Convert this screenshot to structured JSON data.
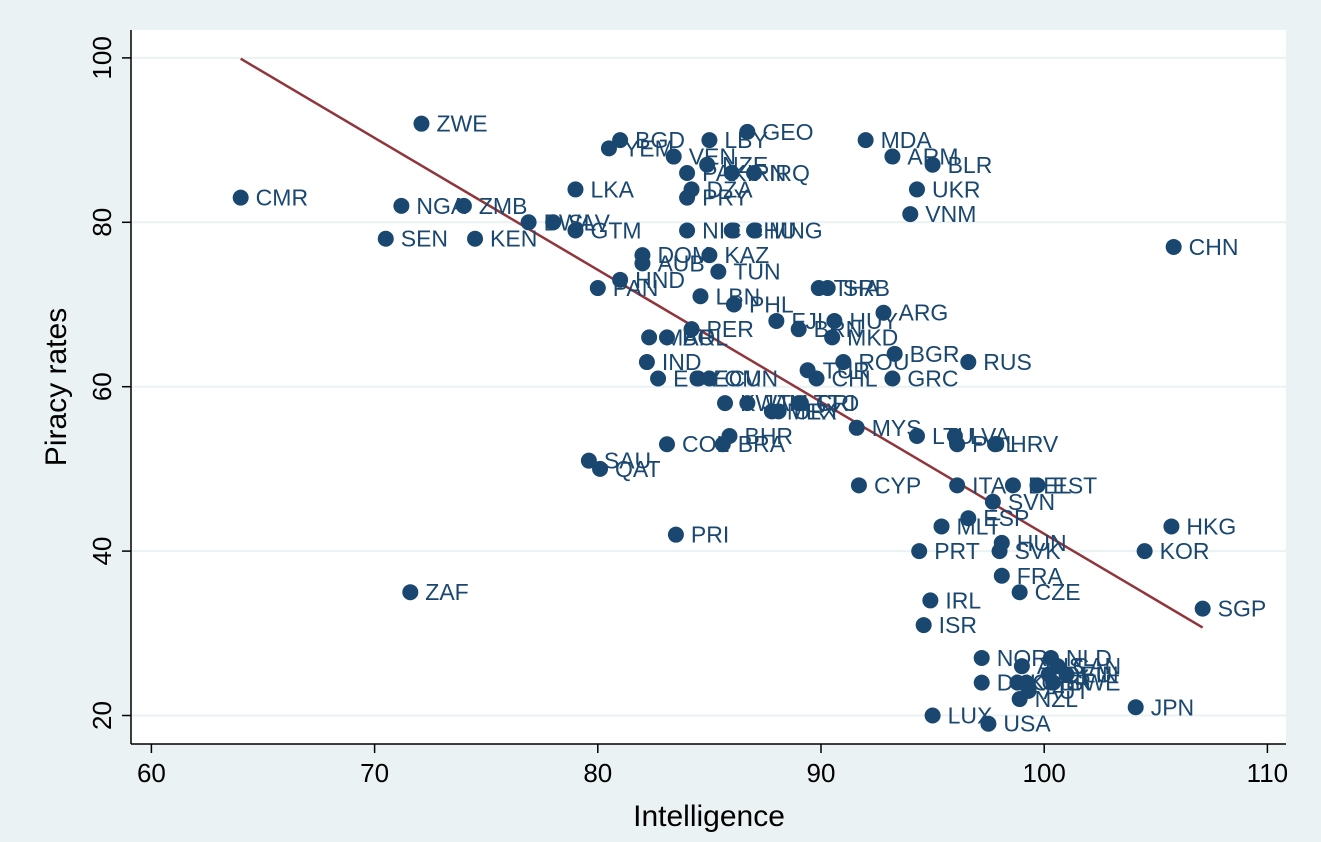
{
  "chart_data": {
    "type": "scatter",
    "xlabel": "Intelligence",
    "ylabel": "Piracy rates",
    "xlim": [
      59,
      110
    ],
    "ylim": [
      17,
      102
    ],
    "xticks": [
      "60",
      "70",
      "80",
      "90",
      "100",
      "110"
    ],
    "yticks": [
      "20",
      "40",
      "60",
      "80",
      "100"
    ],
    "grid": "horizontal",
    "colors": {
      "background": "#eaf2f3",
      "plot_area": "#ffffff",
      "marker": "#1a476f",
      "fit_line": "#90353b"
    },
    "fit_line": {
      "type": "linear",
      "x": [
        64,
        107.1
      ],
      "y": [
        99.9,
        30.7
      ]
    },
    "points": [
      {
        "label": "CMR",
        "x": 64.0,
        "y": 83
      },
      {
        "label": "ZWE",
        "x": 72.1,
        "y": 92
      },
      {
        "label": "NGA",
        "x": 71.2,
        "y": 82
      },
      {
        "label": "ZMB",
        "x": 74.0,
        "y": 82
      },
      {
        "label": "SEN",
        "x": 70.5,
        "y": 78
      },
      {
        "label": "KEN",
        "x": 74.5,
        "y": 78
      },
      {
        "label": "ZAF",
        "x": 71.6,
        "y": 35
      },
      {
        "label": "BWA",
        "x": 76.9,
        "y": 80
      },
      {
        "label": "SLV",
        "x": 78.0,
        "y": 80
      },
      {
        "label": "GTM",
        "x": 79.0,
        "y": 79
      },
      {
        "label": "LKA",
        "x": 79.0,
        "y": 84
      },
      {
        "label": "YEM",
        "x": 80.5,
        "y": 89
      },
      {
        "label": "BGD",
        "x": 81.0,
        "y": 90
      },
      {
        "label": "PAN",
        "x": 80.0,
        "y": 72
      },
      {
        "label": "HND",
        "x": 81.0,
        "y": 73
      },
      {
        "label": "DOM",
        "x": 82.0,
        "y": 76
      },
      {
        "label": "AUB",
        "x": 82.0,
        "y": 75
      },
      {
        "label": "MAR",
        "x": 82.3,
        "y": 66
      },
      {
        "label": "BOL",
        "x": 83.1,
        "y": 66
      },
      {
        "label": "IND",
        "x": 82.2,
        "y": 63
      },
      {
        "label": "EGY",
        "x": 82.7,
        "y": 61
      },
      {
        "label": "COL",
        "x": 83.1,
        "y": 53
      },
      {
        "label": "SAU",
        "x": 79.6,
        "y": 51
      },
      {
        "label": "QAT",
        "x": 80.1,
        "y": 50
      },
      {
        "label": "PRI",
        "x": 83.5,
        "y": 42
      },
      {
        "label": "VEN",
        "x": 83.4,
        "y": 88
      },
      {
        "label": "PAK",
        "x": 84.0,
        "y": 86
      },
      {
        "label": "DZA",
        "x": 84.2,
        "y": 84
      },
      {
        "label": "PRY",
        "x": 84.0,
        "y": 83
      },
      {
        "label": "NIC",
        "x": 84.0,
        "y": 79
      },
      {
        "label": "PER",
        "x": 84.2,
        "y": 67
      },
      {
        "label": "ECU",
        "x": 84.5,
        "y": 61
      },
      {
        "label": "LBN",
        "x": 84.6,
        "y": 71
      },
      {
        "label": "LBY",
        "x": 85.0,
        "y": 90
      },
      {
        "label": "NZE",
        "x": 84.9,
        "y": 87
      },
      {
        "label": "KAZ",
        "x": 85.0,
        "y": 76
      },
      {
        "label": "TUN",
        "x": 85.4,
        "y": 74
      },
      {
        "label": "OMN",
        "x": 85.0,
        "y": 61
      },
      {
        "label": "KWT",
        "x": 85.7,
        "y": 58
      },
      {
        "label": "BHR",
        "x": 85.9,
        "y": 54
      },
      {
        "label": "BRA",
        "x": 85.6,
        "y": 53
      },
      {
        "label": "PHL",
        "x": 86.1,
        "y": 70
      },
      {
        "label": "IRN",
        "x": 86.0,
        "y": 86
      },
      {
        "label": "IRQ",
        "x": 87.0,
        "y": 86
      },
      {
        "label": "CHU",
        "x": 86.0,
        "y": 79
      },
      {
        "label": "MNG",
        "x": 87.0,
        "y": 79
      },
      {
        "label": "GEO",
        "x": 86.7,
        "y": 91
      },
      {
        "label": "JAM",
        "x": 86.7,
        "y": 58
      },
      {
        "label": "MEX",
        "x": 87.8,
        "y": 57
      },
      {
        "label": "URY",
        "x": 88.1,
        "y": 57
      },
      {
        "label": "TTO",
        "x": 89.0,
        "y": 58
      },
      {
        "label": "CRI",
        "x": 89.1,
        "y": 58
      },
      {
        "label": "FJI",
        "x": 88.0,
        "y": 68
      },
      {
        "label": "BRN",
        "x": 89.0,
        "y": 67
      },
      {
        "label": "TUR",
        "x": 89.4,
        "y": 62
      },
      {
        "label": "CHL",
        "x": 89.8,
        "y": 61
      },
      {
        "label": "THA",
        "x": 89.9,
        "y": 72
      },
      {
        "label": "SRB",
        "x": 90.3,
        "y": 72
      },
      {
        "label": "HUY",
        "x": 90.6,
        "y": 68
      },
      {
        "label": "MKD",
        "x": 90.5,
        "y": 66
      },
      {
        "label": "ROU",
        "x": 91.0,
        "y": 63
      },
      {
        "label": "MYS",
        "x": 91.6,
        "y": 55
      },
      {
        "label": "CYP",
        "x": 91.7,
        "y": 48
      },
      {
        "label": "MDA",
        "x": 92.0,
        "y": 90
      },
      {
        "label": "ARG",
        "x": 92.8,
        "y": 69
      },
      {
        "label": "BGR",
        "x": 93.3,
        "y": 64
      },
      {
        "label": "GRC",
        "x": 93.2,
        "y": 61
      },
      {
        "label": "ARM",
        "x": 93.2,
        "y": 88
      },
      {
        "label": "UKR",
        "x": 94.3,
        "y": 84
      },
      {
        "label": "VNM",
        "x": 94.0,
        "y": 81
      },
      {
        "label": "BLR",
        "x": 95.0,
        "y": 87
      },
      {
        "label": "RUS",
        "x": 96.6,
        "y": 63
      },
      {
        "label": "LTU",
        "x": 94.3,
        "y": 54
      },
      {
        "label": "LVA",
        "x": 96.0,
        "y": 54
      },
      {
        "label": "POL",
        "x": 96.1,
        "y": 53
      },
      {
        "label": "HRV",
        "x": 97.8,
        "y": 53
      },
      {
        "label": "ITA",
        "x": 96.1,
        "y": 48
      },
      {
        "label": "SVN",
        "x": 97.7,
        "y": 46
      },
      {
        "label": "ESP",
        "x": 96.6,
        "y": 44
      },
      {
        "label": "MLT",
        "x": 95.4,
        "y": 43
      },
      {
        "label": "PRT",
        "x": 94.4,
        "y": 40
      },
      {
        "label": "SVK",
        "x": 98.0,
        "y": 40
      },
      {
        "label": "HUN",
        "x": 98.1,
        "y": 41
      },
      {
        "label": "FRA",
        "x": 98.1,
        "y": 37
      },
      {
        "label": "CZE",
        "x": 98.9,
        "y": 35
      },
      {
        "label": "BEL",
        "x": 98.6,
        "y": 48
      },
      {
        "label": "EST",
        "x": 99.7,
        "y": 48
      },
      {
        "label": "IRL",
        "x": 94.9,
        "y": 34
      },
      {
        "label": "ISR",
        "x": 94.6,
        "y": 31
      },
      {
        "label": "LUX",
        "x": 95.0,
        "y": 20
      },
      {
        "label": "USA",
        "x": 97.5,
        "y": 19
      },
      {
        "label": "NOR",
        "x": 97.2,
        "y": 27
      },
      {
        "label": "DNK",
        "x": 97.2,
        "y": 24
      },
      {
        "label": "AUS",
        "x": 99.0,
        "y": 26
      },
      {
        "label": "NLD",
        "x": 100.3,
        "y": 27
      },
      {
        "label": "CAN",
        "x": 100.6,
        "y": 26
      },
      {
        "label": "DEU",
        "x": 100.2,
        "y": 25
      },
      {
        "label": "FIN",
        "x": 101.0,
        "y": 25
      },
      {
        "label": "SWE",
        "x": 100.4,
        "y": 24
      },
      {
        "label": "GBR",
        "x": 99.2,
        "y": 24
      },
      {
        "label": "CHE",
        "x": 98.8,
        "y": 24
      },
      {
        "label": "AUT",
        "x": 99.3,
        "y": 23
      },
      {
        "label": "NZL",
        "x": 98.9,
        "y": 22
      },
      {
        "label": "JPN",
        "x": 104.1,
        "y": 21
      },
      {
        "label": "KOR",
        "x": 104.5,
        "y": 40
      },
      {
        "label": "HKG",
        "x": 105.7,
        "y": 43
      },
      {
        "label": "SGP",
        "x": 107.1,
        "y": 33
      },
      {
        "label": "CHN",
        "x": 105.8,
        "y": 77
      }
    ]
  }
}
